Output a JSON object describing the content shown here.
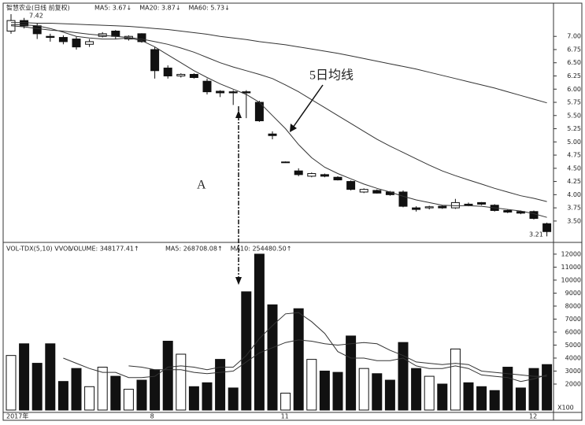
{
  "chart_data": [
    {
      "type": "candlestick",
      "title": "智慧农业(日线 前复权)",
      "categories": [
        "2017年",
        null,
        null,
        null,
        null,
        null,
        null,
        null,
        null,
        null,
        null,
        "8",
        null,
        null,
        null,
        null,
        null,
        null,
        null,
        null,
        null,
        "11",
        null,
        null,
        null,
        null,
        null,
        null,
        null,
        null,
        null,
        null,
        null,
        null,
        null,
        null,
        null,
        null,
        null,
        null,
        "12",
        null
      ],
      "open": [
        7.1,
        7.3,
        7.2,
        7.0,
        6.98,
        6.95,
        6.85,
        7.0,
        7.1,
        6.95,
        7.05,
        6.75,
        6.4,
        6.25,
        6.28,
        6.15,
        5.96,
        5.95,
        5.95,
        5.75,
        5.15,
        4.62,
        4.45,
        4.35,
        4.38,
        4.33,
        4.25,
        4.05,
        4.08,
        4.05,
        4.05,
        3.75,
        3.75,
        3.78,
        3.75,
        3.82,
        3.85,
        3.8,
        3.7,
        3.68,
        3.68,
        3.45
      ],
      "high": [
        7.42,
        7.35,
        7.25,
        7.05,
        7.02,
        7.0,
        6.95,
        7.08,
        7.12,
        7.02,
        7.06,
        6.8,
        6.45,
        6.3,
        6.3,
        6.2,
        5.98,
        5.98,
        5.98,
        5.78,
        5.2,
        4.63,
        4.5,
        4.42,
        4.4,
        4.35,
        4.27,
        4.12,
        4.1,
        4.07,
        4.08,
        3.78,
        3.79,
        3.8,
        3.92,
        3.85,
        3.86,
        3.82,
        3.72,
        3.7,
        3.7,
        3.47
      ],
      "low": [
        7.05,
        7.15,
        6.95,
        6.9,
        6.85,
        6.75,
        6.8,
        6.98,
        6.95,
        6.92,
        6.88,
        6.2,
        6.2,
        6.22,
        6.2,
        5.9,
        5.85,
        5.7,
        5.45,
        5.38,
        5.05,
        4.61,
        4.35,
        4.33,
        4.33,
        4.27,
        4.08,
        4.03,
        4.02,
        3.98,
        3.76,
        3.68,
        3.72,
        3.73,
        3.73,
        3.78,
        3.8,
        3.68,
        3.65,
        3.63,
        3.53,
        3.21
      ],
      "close": [
        7.3,
        7.2,
        7.05,
        6.98,
        6.9,
        6.8,
        6.9,
        7.05,
        7.0,
        7.0,
        6.9,
        6.35,
        6.25,
        6.28,
        6.22,
        5.95,
        5.93,
        5.93,
        5.93,
        5.4,
        5.12,
        4.62,
        4.38,
        4.4,
        4.35,
        4.28,
        4.1,
        4.1,
        4.03,
        4.0,
        3.78,
        3.72,
        3.77,
        3.75,
        3.85,
        3.8,
        3.82,
        3.7,
        3.67,
        3.65,
        3.55,
        3.3
      ],
      "series": [
        {
          "name": "MA5: 3.67↓",
          "color": "#333333",
          "values": [
            7.22,
            7.22,
            7.2,
            7.15,
            7.08,
            7.0,
            6.97,
            6.95,
            6.95,
            6.97,
            6.92,
            6.8,
            6.65,
            6.5,
            6.35,
            6.22,
            6.1,
            6.0,
            5.9,
            5.75,
            5.5,
            5.25,
            4.95,
            4.7,
            4.52,
            4.4,
            4.3,
            4.2,
            4.12,
            4.05,
            3.97,
            3.9,
            3.85,
            3.8,
            3.79,
            3.79,
            3.78,
            3.75,
            3.72,
            3.69,
            3.64,
            3.57
          ]
        },
        {
          "name": "MA20: 3.87↓",
          "color": "#333333",
          "values": [
            7.2,
            7.18,
            7.15,
            7.12,
            7.1,
            7.07,
            7.04,
            7.02,
            7.0,
            6.98,
            6.95,
            6.9,
            6.85,
            6.78,
            6.7,
            6.6,
            6.5,
            6.42,
            6.35,
            6.28,
            6.2,
            6.08,
            5.95,
            5.8,
            5.65,
            5.5,
            5.35,
            5.2,
            5.05,
            4.92,
            4.8,
            4.68,
            4.56,
            4.45,
            4.36,
            4.28,
            4.2,
            4.12,
            4.05,
            3.98,
            3.93,
            3.87
          ]
        },
        {
          "name": "MA60: 5.73↓",
          "color": "#333333",
          "values": [
            7.26,
            7.26,
            7.25,
            7.25,
            7.24,
            7.23,
            7.22,
            7.21,
            7.2,
            7.19,
            7.17,
            7.15,
            7.13,
            7.1,
            7.07,
            7.04,
            7.0,
            6.97,
            6.94,
            6.9,
            6.87,
            6.84,
            6.8,
            6.76,
            6.72,
            6.68,
            6.63,
            6.58,
            6.53,
            6.48,
            6.43,
            6.38,
            6.32,
            6.26,
            6.2,
            6.14,
            6.08,
            6.02,
            5.95,
            5.88,
            5.81,
            5.74
          ]
        }
      ],
      "ylim": [
        3.14,
        7.57
      ],
      "yticks": [
        {
          "value": 3.5,
          "label": "3.50"
        },
        {
          "value": 3.75,
          "label": "3.75"
        },
        {
          "value": 4.0,
          "label": "4.00"
        },
        {
          "value": 4.25,
          "label": "4.25"
        },
        {
          "value": 4.5,
          "label": "4.50"
        },
        {
          "value": 4.75,
          "label": "4.75"
        },
        {
          "value": 5.0,
          "label": "5.00"
        },
        {
          "value": 5.25,
          "label": "5.25"
        },
        {
          "value": 5.5,
          "label": "5.50"
        },
        {
          "value": 5.75,
          "label": "5.75"
        },
        {
          "value": 6.0,
          "label": "6.00"
        },
        {
          "value": 6.25,
          "label": "6.25"
        },
        {
          "value": 6.5,
          "label": "6.50"
        },
        {
          "value": 6.75,
          "label": "6.75"
        },
        {
          "value": 7.0,
          "label": "7.00"
        }
      ],
      "annotations": [
        "5日均线",
        "A"
      ],
      "high_label": "7.42",
      "low_label": "3.21"
    },
    {
      "type": "volume",
      "title": "VOL-TDX(5,10)  VVOL -",
      "volume_label": "VOLUME: 348177.41↑",
      "values": [
        4200,
        5100,
        3600,
        5100,
        2200,
        3200,
        1800,
        3300,
        2600,
        1600,
        2300,
        3100,
        5300,
        4300,
        1800,
        2100,
        3900,
        1700,
        9100,
        12000,
        8100,
        1300,
        7800,
        3900,
        3000,
        2900,
        5700,
        3200,
        2800,
        2300,
        5200,
        3200,
        2600,
        2000,
        4700,
        2100,
        1800,
        1500,
        3300,
        1700,
        3200,
        3500
      ],
      "series": [
        {
          "name": "MA5: 268708.08↑",
          "color": "#333333",
          "values": [
            null,
            null,
            null,
            null,
            4000,
            3600,
            3200,
            2900,
            2900,
            2500,
            2500,
            2600,
            3300,
            3400,
            3300,
            3100,
            3300,
            3300,
            4200,
            5500,
            6500,
            7400,
            7500,
            6800,
            5900,
            4500,
            4000,
            4000,
            3800,
            3800,
            4000,
            3400,
            3200,
            3200,
            3400,
            3200,
            2700,
            2600,
            2500,
            2200,
            2400,
            2700
          ]
        },
        {
          "name": "MA10: 254480.50↑",
          "color": "#333333",
          "values": [
            null,
            null,
            null,
            null,
            null,
            null,
            null,
            null,
            null,
            3400,
            3300,
            3100,
            3100,
            3100,
            2900,
            2800,
            2900,
            3000,
            3700,
            4400,
            4800,
            5200,
            5400,
            5300,
            5100,
            5000,
            5100,
            5200,
            5100,
            4600,
            4200,
            3700,
            3600,
            3500,
            3600,
            3500,
            3000,
            2900,
            2800,
            2700,
            2600,
            2600
          ]
        }
      ],
      "ylim": [
        0,
        12600
      ],
      "yticks": [
        2000,
        3000,
        4000,
        5000,
        6000,
        7000,
        8000,
        9000,
        10000,
        11000,
        12000
      ],
      "unit": "X100"
    }
  ]
}
